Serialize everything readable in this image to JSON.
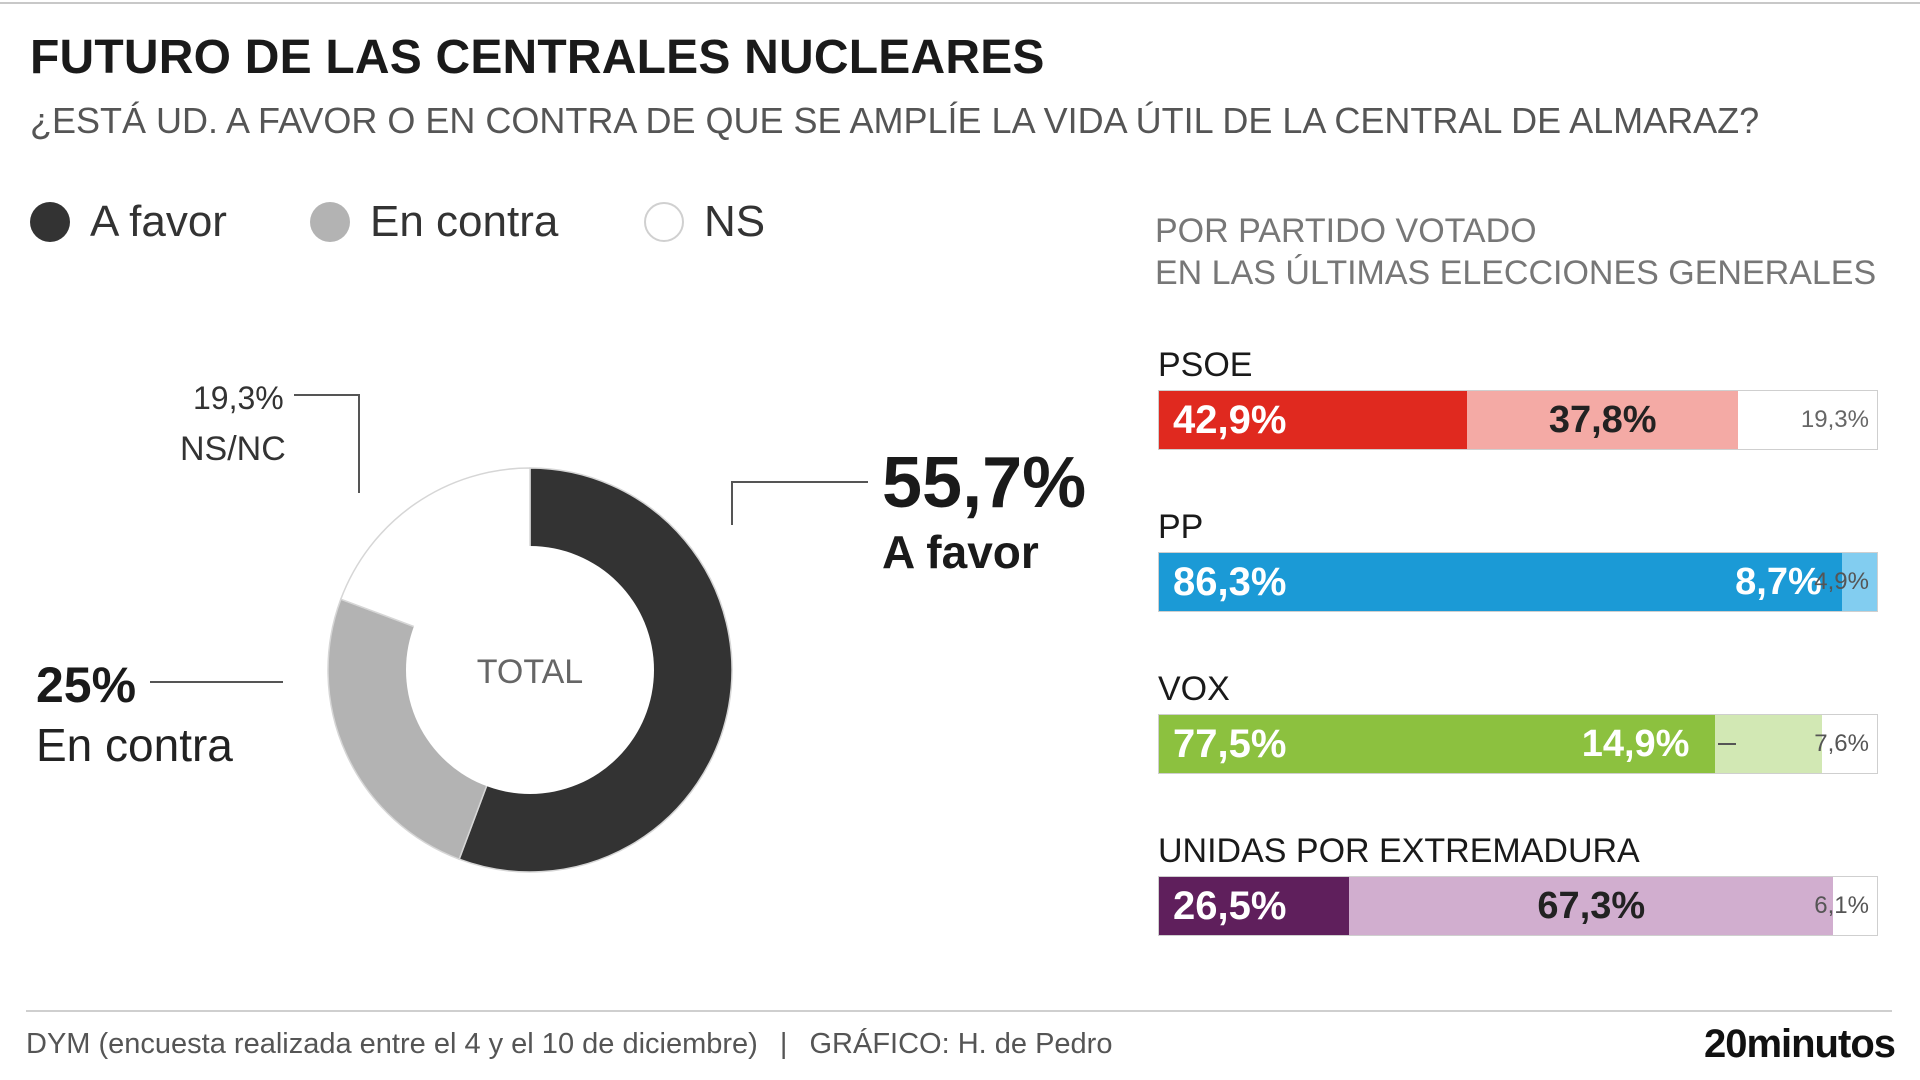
{
  "header": {
    "title": "FUTURO DE LAS CENTRALES NUCLEARES",
    "subtitle": "¿ESTÁ UD. A FAVOR O EN CONTRA DE QUE SE AMPLÍE LA VIDA ÚTIL DE LA CENTRAL DE ALMARAZ?"
  },
  "legend": [
    {
      "label": "A favor",
      "color": "#333333"
    },
    {
      "label": "En contra",
      "color": "#b3b3b3"
    },
    {
      "label": "NS",
      "color": "#ffffff"
    }
  ],
  "donut": {
    "center_label": "TOTAL",
    "slices": [
      {
        "key": "favor",
        "value": 55.7,
        "color": "#333333",
        "value_label": "55,7%",
        "label": "A favor"
      },
      {
        "key": "contra",
        "value": 25,
        "color": "#b3b3b3",
        "value_label": "25%",
        "label": "En contra"
      },
      {
        "key": "ns",
        "value": 19.3,
        "color": "#ffffff",
        "value_label": "19,3%",
        "label": "NS/NC"
      }
    ]
  },
  "breakdown": {
    "heading_line1": "POR PARTIDO VOTADO",
    "heading_line2": "EN LAS ÚLTIMAS ELECCIONES GENERALES"
  },
  "chart_data": [
    {
      "type": "pie",
      "title": "FUTURO DE LAS CENTRALES NUCLEARES",
      "subtitle": "¿ESTÁ UD. A FAVOR O EN CONTRA DE QUE SE AMPLÍE LA VIDA ÚTIL DE LA CENTRAL DE ALMARAZ?",
      "center_label": "TOTAL",
      "categories": [
        "A favor",
        "En contra",
        "NS/NC"
      ],
      "values": [
        55.7,
        25,
        19.3
      ]
    },
    {
      "type": "bar",
      "orientation": "horizontal",
      "stacked": true,
      "title": "POR PARTIDO VOTADO EN LAS ÚLTIMAS ELECCIONES GENERALES",
      "categories": [
        "PSOE",
        "PP",
        "VOX",
        "UNIDAS POR EXTREMADURA"
      ],
      "series": [
        {
          "name": "A favor",
          "values": [
            42.9,
            86.3,
            77.5,
            26.5
          ]
        },
        {
          "name": "En contra",
          "values": [
            37.8,
            8.7,
            14.9,
            67.3
          ]
        },
        {
          "name": "NS",
          "values": [
            19.3,
            4.9,
            7.6,
            6.1
          ]
        }
      ],
      "parties": [
        {
          "name": "PSOE",
          "segments": [
            {
              "value": 42.9,
              "label": "42,9%",
              "color": "#e0291f",
              "text_color": "#ffffff"
            },
            {
              "value": 37.8,
              "label": "37,8%",
              "color": "#f4aaa5",
              "text_color": "#222222"
            },
            {
              "value": 19.3,
              "label": "19,3%",
              "color": "#ffffff",
              "text_color": "#666666"
            }
          ]
        },
        {
          "name": "PP",
          "segments": [
            {
              "value": 86.3,
              "label": "86,3%",
              "color": "#1b9ad6",
              "text_color": "#ffffff"
            },
            {
              "value": 8.7,
              "label": "8,7%",
              "color": "#1b9ad6",
              "text_color": "#ffffff"
            },
            {
              "value": 4.9,
              "label": "4,9%",
              "color": "#82cdf0",
              "text_color": "#555555"
            }
          ]
        },
        {
          "name": "VOX",
          "segments": [
            {
              "value": 77.5,
              "label": "77,5%",
              "color": "#8cc13f",
              "text_color": "#ffffff"
            },
            {
              "value": 14.9,
              "label": "14,9%",
              "color": "#d2e8b4",
              "text_color": "#ffffff"
            },
            {
              "value": 7.6,
              "label": "7,6%",
              "color": "#ffffff",
              "text_color": "#555555"
            }
          ]
        },
        {
          "name": "UNIDAS POR EXTREMADURA",
          "segments": [
            {
              "value": 26.5,
              "label": "26,5%",
              "color": "#5f1f5c",
              "text_color": "#ffffff"
            },
            {
              "value": 67.3,
              "label": "67,3%",
              "color": "#d1aecf",
              "text_color": "#222222"
            },
            {
              "value": 6.1,
              "label": "6,1%",
              "color": "#ffffff",
              "text_color": "#555555"
            }
          ]
        }
      ]
    }
  ],
  "footer": {
    "source": "DYM (encuesta realizada entre el 4 y el 10 de diciembre)",
    "separator": "|",
    "credit": "GRÁFICO: H. de Pedro",
    "logo": "20minutos"
  }
}
